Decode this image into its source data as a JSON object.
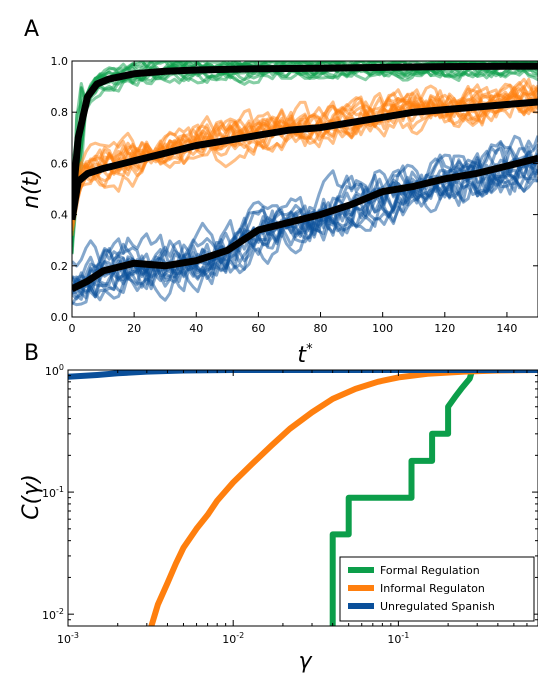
{
  "colors": {
    "green": "#0c9e4a",
    "orange": "#ff7f0e",
    "blue": "#0a4f9a",
    "black": "#000000"
  },
  "chart_data": [
    {
      "panel": "A",
      "type": "line",
      "panel_label": "A",
      "xlabel": "t*",
      "ylabel": "n(t)",
      "xlim": [
        0,
        150
      ],
      "ylim": [
        0,
        1
      ],
      "xticks": [
        "0",
        "20",
        "40",
        "60",
        "80",
        "100",
        "120",
        "140"
      ],
      "yticks": [
        "0.0",
        "0.2",
        "0.4",
        "0.6",
        "0.8",
        "1.0"
      ],
      "grid": false,
      "series": [
        {
          "color_key": "green",
          "mean": {
            "x": [
              0,
              2,
              5,
              8,
              12,
              20,
              30,
              40,
              60,
              80,
              100,
              120,
              150
            ],
            "y": [
              0.42,
              0.7,
              0.86,
              0.91,
              0.93,
              0.95,
              0.96,
              0.965,
              0.97,
              0.972,
              0.975,
              0.978,
              0.98
            ]
          }
        },
        {
          "color_key": "orange",
          "mean": {
            "x": [
              0,
              2,
              5,
              10,
              20,
              30,
              40,
              50,
              60,
              70,
              80,
              90,
              100,
              110,
              120,
              130,
              140,
              150
            ],
            "y": [
              0.38,
              0.53,
              0.56,
              0.58,
              0.61,
              0.64,
              0.67,
              0.69,
              0.71,
              0.73,
              0.74,
              0.76,
              0.78,
              0.8,
              0.81,
              0.82,
              0.83,
              0.84
            ]
          }
        },
        {
          "color_key": "blue",
          "mean": {
            "x": [
              0,
              5,
              10,
              20,
              30,
              40,
              50,
              55,
              60,
              70,
              80,
              90,
              100,
              110,
              120,
              130,
              140,
              150
            ],
            "y": [
              0.11,
              0.14,
              0.18,
              0.21,
              0.2,
              0.22,
              0.26,
              0.3,
              0.34,
              0.37,
              0.4,
              0.44,
              0.49,
              0.51,
              0.54,
              0.56,
              0.59,
              0.62
            ]
          }
        }
      ]
    },
    {
      "panel": "B",
      "type": "line",
      "panel_label": "B",
      "xlabel": "γ",
      "ylabel": "C(γ)",
      "xscale": "log",
      "yscale": "log",
      "xlim": [
        0.001,
        0.7
      ],
      "ylim": [
        0.008,
        1
      ],
      "xticks": [
        {
          "v": 0.001,
          "base": "10",
          "exp": "-3"
        },
        {
          "v": 0.01,
          "base": "10",
          "exp": "-2"
        },
        {
          "v": 0.1,
          "base": "10",
          "exp": "-1"
        }
      ],
      "yticks": [
        {
          "v": 0.01,
          "base": "10",
          "exp": "-2"
        },
        {
          "v": 0.1,
          "base": "10",
          "exp": "-1"
        },
        {
          "v": 1,
          "base": "10",
          "exp": "0"
        }
      ],
      "legend_position": "lower-right",
      "series": [
        {
          "name": "Formal Regulation",
          "color_key": "green",
          "step": true,
          "x": [
            0.04,
            0.04,
            0.05,
            0.05,
            0.12,
            0.12,
            0.16,
            0.16,
            0.2,
            0.2,
            0.22,
            0.24,
            0.27,
            0.28,
            0.7
          ],
          "y": [
            0.005,
            0.045,
            0.045,
            0.09,
            0.09,
            0.18,
            0.18,
            0.3,
            0.3,
            0.5,
            0.6,
            0.7,
            0.85,
            1.0,
            1.0
          ]
        },
        {
          "name": "Informal Regulaton",
          "color_key": "orange",
          "step": false,
          "x": [
            0.003,
            0.0032,
            0.0035,
            0.004,
            0.0045,
            0.005,
            0.006,
            0.007,
            0.008,
            0.01,
            0.013,
            0.017,
            0.022,
            0.03,
            0.04,
            0.055,
            0.075,
            0.1,
            0.15,
            0.25,
            0.4,
            0.7
          ],
          "y": [
            0.005,
            0.008,
            0.012,
            0.018,
            0.026,
            0.035,
            0.05,
            0.065,
            0.085,
            0.12,
            0.17,
            0.24,
            0.33,
            0.45,
            0.58,
            0.7,
            0.8,
            0.87,
            0.93,
            0.97,
            0.99,
            1.0
          ]
        },
        {
          "name": "Unregulated Spanish",
          "color_key": "blue",
          "step": false,
          "x": [
            0.001,
            0.0015,
            0.002,
            0.003,
            0.005,
            0.01,
            0.1,
            0.7
          ],
          "y": [
            0.88,
            0.91,
            0.94,
            0.97,
            0.99,
            1.0,
            1.0,
            1.0
          ]
        }
      ]
    }
  ]
}
